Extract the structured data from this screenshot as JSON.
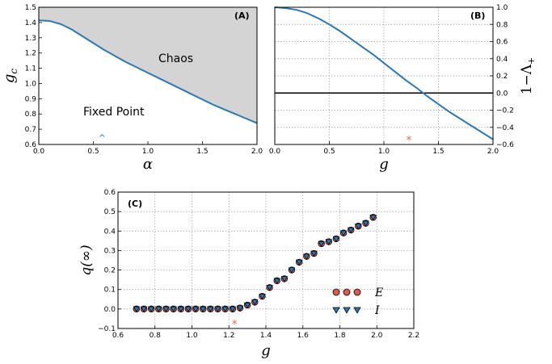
{
  "chart_data": [
    {
      "type": "area",
      "panel_label": "(A)",
      "xlabel": "α",
      "ylabel": "g",
      "ylabel_sub": "c",
      "xlim": [
        0.0,
        2.0
      ],
      "ylim": [
        0.6,
        1.5
      ],
      "xticks": [
        "0.0",
        "0.5",
        "1.0",
        "1.5",
        "2.0"
      ],
      "yticks": [
        "0.6",
        "0.7",
        "0.8",
        "0.9",
        "1.0",
        "1.1",
        "1.2",
        "1.3",
        "1.4",
        "1.5"
      ],
      "grid": false,
      "upper_region_label": "Chaos",
      "lower_region_label": "Fixed Point",
      "fill_color": "#d4d4d4",
      "line_color": "#2a78b8",
      "marker_symbol": "^",
      "marker_position": [
        0.58,
        0.645
      ],
      "series": [
        {
          "x": [
            0,
            0.1,
            0.2,
            0.3,
            0.4,
            0.5,
            0.6,
            0.7,
            0.8,
            0.9,
            1.0,
            1.1,
            1.2,
            1.3,
            1.4,
            1.5,
            1.6,
            1.7,
            1.8,
            1.9,
            2.0
          ],
          "y": [
            1.414,
            1.41,
            1.39,
            1.355,
            1.31,
            1.265,
            1.22,
            1.18,
            1.14,
            1.105,
            1.07,
            1.035,
            1.0,
            0.965,
            0.93,
            0.895,
            0.86,
            0.83,
            0.8,
            0.77,
            0.74
          ]
        }
      ]
    },
    {
      "type": "line",
      "panel_label": "(B)",
      "xlabel": "g",
      "ylabel": "1−Λ",
      "ylabel_sub": "+",
      "xlim": [
        0.0,
        2.0
      ],
      "ylim": [
        -0.6,
        1.0
      ],
      "xticks": [
        "0.0",
        "0.5",
        "1.0",
        "1.5",
        "2.0"
      ],
      "yticks": [
        "−0.6",
        "−0.4",
        "−0.2",
        "0.0",
        "0.2",
        "0.4",
        "0.6",
        "0.8",
        "1.0"
      ],
      "grid": true,
      "hline": 0.0,
      "line_color": "#2a78b8",
      "star_x": 1.23,
      "star_color": "#e8603c",
      "series": [
        {
          "x": [
            0,
            0.1,
            0.2,
            0.3,
            0.4,
            0.5,
            0.6,
            0.7,
            0.8,
            0.9,
            1.0,
            1.1,
            1.2,
            1.3,
            1.4,
            1.5,
            1.6,
            1.7,
            1.8,
            1.9,
            2.0
          ],
          "y": [
            1.0,
            0.99,
            0.97,
            0.93,
            0.87,
            0.8,
            0.72,
            0.63,
            0.54,
            0.45,
            0.35,
            0.25,
            0.15,
            0.06,
            -0.04,
            -0.13,
            -0.22,
            -0.3,
            -0.38,
            -0.46,
            -0.54
          ]
        }
      ]
    },
    {
      "type": "scatter",
      "panel_label": "(C)",
      "xlabel": "g",
      "ylabel": "q(∞)",
      "xlim": [
        0.6,
        2.2
      ],
      "ylim": [
        -0.1,
        0.6
      ],
      "xticks": [
        "0.6",
        "0.8",
        "1.0",
        "1.2",
        "1.4",
        "1.6",
        "1.8",
        "2.0",
        "2.2"
      ],
      "yticks": [
        "−0.1",
        "0.0",
        "0.1",
        "0.2",
        "0.3",
        "0.4",
        "0.5",
        "0.6"
      ],
      "grid": true,
      "legend_position": "right",
      "star_x": 1.23,
      "star_color": "#e8603c",
      "series": [
        {
          "name": "E",
          "marker": "circle",
          "color": "#e05a4a",
          "x": [
            0.7,
            0.74,
            0.78,
            0.82,
            0.86,
            0.9,
            0.94,
            0.98,
            1.02,
            1.06,
            1.1,
            1.14,
            1.18,
            1.22,
            1.26,
            1.3,
            1.34,
            1.38,
            1.42,
            1.46,
            1.5,
            1.54,
            1.58,
            1.62,
            1.66,
            1.7,
            1.74,
            1.78,
            1.82,
            1.86,
            1.9,
            1.94,
            1.98
          ],
          "y": [
            0,
            0,
            0,
            0,
            0,
            0,
            0,
            0,
            0,
            0,
            0,
            0,
            0,
            0,
            0.005,
            0.02,
            0.035,
            0.065,
            0.11,
            0.145,
            0.155,
            0.2,
            0.24,
            0.27,
            0.285,
            0.335,
            0.345,
            0.36,
            0.39,
            0.405,
            0.425,
            0.44,
            0.47
          ]
        },
        {
          "name": "I",
          "marker": "triangle-down",
          "color": "#2a78b8",
          "x": [
            0.7,
            0.74,
            0.78,
            0.82,
            0.86,
            0.9,
            0.94,
            0.98,
            1.02,
            1.06,
            1.1,
            1.14,
            1.18,
            1.22,
            1.26,
            1.3,
            1.34,
            1.38,
            1.42,
            1.46,
            1.5,
            1.54,
            1.58,
            1.62,
            1.66,
            1.7,
            1.74,
            1.78,
            1.82,
            1.86,
            1.9,
            1.94,
            1.98
          ],
          "y": [
            0,
            0,
            0,
            0,
            0,
            0,
            0,
            0,
            0,
            0,
            0,
            0,
            0,
            0,
            0.005,
            0.02,
            0.035,
            0.065,
            0.11,
            0.145,
            0.155,
            0.2,
            0.24,
            0.27,
            0.285,
            0.335,
            0.345,
            0.36,
            0.39,
            0.405,
            0.425,
            0.44,
            0.47
          ]
        }
      ]
    }
  ]
}
